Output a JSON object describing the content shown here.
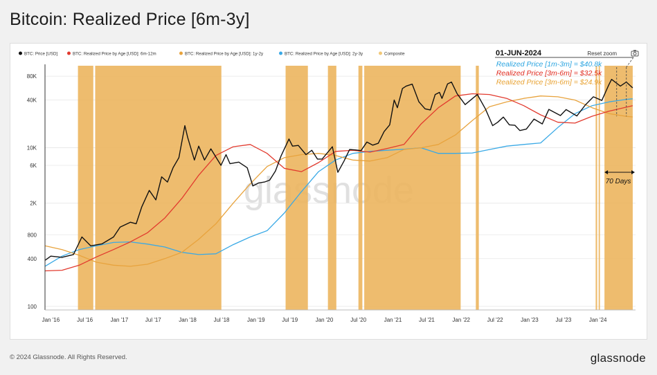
{
  "page": {
    "title": "Bitcoin: Realized Price [6m-3y]",
    "copyright": "© 2024 Glassnode. All Rights Reserved.",
    "brand": "glassnode",
    "watermark": "glassnode"
  },
  "toolbar": {
    "reset_zoom": "Reset zoom",
    "camera_icon": "camera-icon"
  },
  "colors": {
    "price": "#111111",
    "rp_6m_12m": "#e23a2e",
    "rp_1y_2y": "#e8a33d",
    "rp_2y_3y": "#39a9e6",
    "composite": "#f2c979",
    "composite_fill": "#ecb55e",
    "grid": "#e6e6e6",
    "annotation_blue": "#2aa4e0",
    "annotation_red": "#e02a1f",
    "annotation_orange": "#e8a232"
  },
  "annotations": {
    "date": "01-JUN-2024",
    "line1": "Realized Price [1m-3m] = $40.8k",
    "line2": "Realized Price [3m-6m] = $32.5k",
    "line3": "Realized Price [3m-6m] = $24.9k",
    "duration": "70 Days"
  },
  "chart_data": {
    "type": "line",
    "title": "Bitcoin: Realized Price [6m-3y]",
    "y_scale": "log",
    "ylim": [
      90,
      100000
    ],
    "xlim": [
      "2015-12-01",
      "2024-07-20"
    ],
    "x_ticks": [
      {
        "label": "Jan '16",
        "date": "2016-01-01"
      },
      {
        "label": "Jul '16",
        "date": "2016-07-01"
      },
      {
        "label": "Jan '17",
        "date": "2017-01-01"
      },
      {
        "label": "Jul '17",
        "date": "2017-07-01"
      },
      {
        "label": "Jan '18",
        "date": "2018-01-01"
      },
      {
        "label": "Jul '18",
        "date": "2018-07-01"
      },
      {
        "label": "Jan '19",
        "date": "2019-01-01"
      },
      {
        "label": "Jul '19",
        "date": "2019-07-01"
      },
      {
        "label": "Jan '20",
        "date": "2020-01-01"
      },
      {
        "label": "Jul '20",
        "date": "2020-07-01"
      },
      {
        "label": "Jan '21",
        "date": "2021-01-01"
      },
      {
        "label": "Jul '21",
        "date": "2021-07-01"
      },
      {
        "label": "Jan '22",
        "date": "2022-01-01"
      },
      {
        "label": "Jul '22",
        "date": "2022-07-01"
      },
      {
        "label": "Jan '23",
        "date": "2023-01-01"
      },
      {
        "label": "Jul '23",
        "date": "2023-07-01"
      },
      {
        "label": "Jan '24",
        "date": "2024-01-01"
      }
    ],
    "y_ticks": [
      {
        "label": "80K",
        "value": 80000
      },
      {
        "label": "40K",
        "value": 40000
      },
      {
        "label": "10K",
        "value": 10000
      },
      {
        "label": "6K",
        "value": 6000
      },
      {
        "label": "2K",
        "value": 2000
      },
      {
        "label": "800",
        "value": 800
      },
      {
        "label": "400",
        "value": 400
      },
      {
        "label": "100",
        "value": 100
      }
    ],
    "legend": [
      {
        "label": "BTC: Price [USD]",
        "color": "#111111"
      },
      {
        "label": "BTC: Realized Price by Age [USD]: 6m-12m",
        "color": "#e23a2e"
      },
      {
        "label": "BTC: Realized Price by Age [USD]: 1y-2y",
        "color": "#e8a33d"
      },
      {
        "label": "BTC: Realized Price by Age [USD]: 2y-3y",
        "color": "#39a9e6"
      },
      {
        "label": "Composite",
        "color": "#f2c979"
      }
    ],
    "legend_position": "top-left",
    "grid": true,
    "series": [
      {
        "name": "BTC: Price [USD]",
        "color": "#111111",
        "points": [
          [
            "2015-12-01",
            380
          ],
          [
            "2016-01-01",
            430
          ],
          [
            "2016-03-01",
            415
          ],
          [
            "2016-05-01",
            450
          ],
          [
            "2016-06-15",
            750
          ],
          [
            "2016-08-01",
            580
          ],
          [
            "2016-10-01",
            615
          ],
          [
            "2016-12-01",
            750
          ],
          [
            "2017-01-05",
            1000
          ],
          [
            "2017-03-01",
            1150
          ],
          [
            "2017-04-01",
            1100
          ],
          [
            "2017-05-01",
            1800
          ],
          [
            "2017-06-10",
            2900
          ],
          [
            "2017-07-15",
            2200
          ],
          [
            "2017-08-15",
            4300
          ],
          [
            "2017-09-15",
            3700
          ],
          [
            "2017-10-15",
            5600
          ],
          [
            "2017-11-15",
            7500
          ],
          [
            "2017-12-17",
            19000
          ],
          [
            "2018-01-01",
            13500
          ],
          [
            "2018-02-06",
            7000
          ],
          [
            "2018-03-01",
            10500
          ],
          [
            "2018-04-01",
            7000
          ],
          [
            "2018-05-05",
            9700
          ],
          [
            "2018-06-28",
            6000
          ],
          [
            "2018-07-25",
            8200
          ],
          [
            "2018-08-15",
            6300
          ],
          [
            "2018-10-01",
            6600
          ],
          [
            "2018-11-15",
            5600
          ],
          [
            "2018-12-15",
            3300
          ],
          [
            "2019-01-15",
            3600
          ],
          [
            "2019-02-15",
            3700
          ],
          [
            "2019-03-15",
            3900
          ],
          [
            "2019-04-15",
            5100
          ],
          [
            "2019-05-15",
            7900
          ],
          [
            "2019-06-26",
            12900
          ],
          [
            "2019-07-15",
            10500
          ],
          [
            "2019-08-15",
            10700
          ],
          [
            "2019-09-25",
            8200
          ],
          [
            "2019-10-26",
            9300
          ],
          [
            "2019-11-25",
            7200
          ],
          [
            "2019-12-20",
            7200
          ],
          [
            "2020-02-13",
            10300
          ],
          [
            "2020-03-13",
            4900
          ],
          [
            "2020-04-15",
            6800
          ],
          [
            "2020-05-15",
            9500
          ],
          [
            "2020-06-15",
            9400
          ],
          [
            "2020-07-15",
            9200
          ],
          [
            "2020-08-15",
            11800
          ],
          [
            "2020-09-15",
            10800
          ],
          [
            "2020-10-15",
            11400
          ],
          [
            "2020-11-15",
            16000
          ],
          [
            "2020-12-15",
            19500
          ],
          [
            "2021-01-08",
            40000
          ],
          [
            "2021-01-25",
            32000
          ],
          [
            "2021-02-21",
            56000
          ],
          [
            "2021-03-13",
            60000
          ],
          [
            "2021-04-14",
            63500
          ],
          [
            "2021-05-20",
            38000
          ],
          [
            "2021-06-22",
            31000
          ],
          [
            "2021-07-20",
            30000
          ],
          [
            "2021-08-15",
            47000
          ],
          [
            "2021-09-07",
            50000
          ],
          [
            "2021-09-20",
            42000
          ],
          [
            "2021-10-20",
            64000
          ],
          [
            "2021-11-10",
            67500
          ],
          [
            "2021-12-10",
            48000
          ],
          [
            "2022-01-22",
            35000
          ],
          [
            "2022-03-28",
            47000
          ],
          [
            "2022-05-10",
            31000
          ],
          [
            "2022-06-18",
            19000
          ],
          [
            "2022-07-15",
            21000
          ],
          [
            "2022-08-14",
            24400
          ],
          [
            "2022-09-15",
            19500
          ],
          [
            "2022-10-15",
            19200
          ],
          [
            "2022-11-10",
            16500
          ],
          [
            "2022-12-15",
            17200
          ],
          [
            "2023-01-25",
            23000
          ],
          [
            "2023-03-10",
            20000
          ],
          [
            "2023-04-14",
            30500
          ],
          [
            "2023-06-15",
            25500
          ],
          [
            "2023-07-15",
            30300
          ],
          [
            "2023-09-11",
            25200
          ],
          [
            "2023-10-25",
            34500
          ],
          [
            "2023-12-08",
            44000
          ],
          [
            "2024-01-22",
            39500
          ],
          [
            "2024-02-28",
            62000
          ],
          [
            "2024-03-14",
            73000
          ],
          [
            "2024-04-30",
            60000
          ],
          [
            "2024-06-01",
            67500
          ],
          [
            "2024-07-05",
            57000
          ]
        ]
      },
      {
        "name": "BTC: Realized Price by Age [USD]: 6m-12m",
        "color": "#e23a2e",
        "points": [
          [
            "2015-12-01",
            280
          ],
          [
            "2016-03-01",
            285
          ],
          [
            "2016-06-01",
            330
          ],
          [
            "2016-09-01",
            420
          ],
          [
            "2016-12-01",
            520
          ],
          [
            "2017-03-01",
            650
          ],
          [
            "2017-06-01",
            850
          ],
          [
            "2017-09-01",
            1300
          ],
          [
            "2017-12-01",
            2300
          ],
          [
            "2018-03-01",
            4500
          ],
          [
            "2018-06-01",
            8000
          ],
          [
            "2018-09-01",
            10300
          ],
          [
            "2018-12-01",
            11000
          ],
          [
            "2019-03-01",
            8500
          ],
          [
            "2019-06-01",
            5500
          ],
          [
            "2019-09-01",
            5000
          ],
          [
            "2019-12-01",
            6500
          ],
          [
            "2020-03-01",
            9000
          ],
          [
            "2020-06-01",
            9300
          ],
          [
            "2020-09-01",
            8800
          ],
          [
            "2020-12-01",
            9800
          ],
          [
            "2021-03-01",
            11000
          ],
          [
            "2021-06-01",
            20000
          ],
          [
            "2021-09-01",
            32000
          ],
          [
            "2021-12-01",
            45000
          ],
          [
            "2022-03-01",
            48000
          ],
          [
            "2022-06-01",
            47000
          ],
          [
            "2022-09-01",
            42000
          ],
          [
            "2022-12-01",
            34000
          ],
          [
            "2023-03-01",
            26000
          ],
          [
            "2023-06-01",
            21000
          ],
          [
            "2023-09-01",
            20500
          ],
          [
            "2023-12-01",
            25000
          ],
          [
            "2024-03-01",
            29000
          ],
          [
            "2024-06-01",
            32500
          ],
          [
            "2024-07-05",
            34000
          ]
        ]
      },
      {
        "name": "BTC: Realized Price by Age [USD]: 1y-2y",
        "color": "#e8a33d",
        "points": [
          [
            "2015-12-01",
            580
          ],
          [
            "2016-03-01",
            520
          ],
          [
            "2016-06-01",
            440
          ],
          [
            "2016-09-01",
            360
          ],
          [
            "2016-12-01",
            330
          ],
          [
            "2017-03-01",
            320
          ],
          [
            "2017-06-01",
            340
          ],
          [
            "2017-09-01",
            400
          ],
          [
            "2017-12-01",
            480
          ],
          [
            "2018-03-01",
            700
          ],
          [
            "2018-06-01",
            1100
          ],
          [
            "2018-09-01",
            2000
          ],
          [
            "2018-12-01",
            3500
          ],
          [
            "2019-03-01",
            5800
          ],
          [
            "2019-06-01",
            7500
          ],
          [
            "2019-09-01",
            8200
          ],
          [
            "2019-12-01",
            8500
          ],
          [
            "2020-03-01",
            8000
          ],
          [
            "2020-06-01",
            7000
          ],
          [
            "2020-09-01",
            6800
          ],
          [
            "2020-12-01",
            7500
          ],
          [
            "2021-03-01",
            9500
          ],
          [
            "2021-06-01",
            10000
          ],
          [
            "2021-09-01",
            11000
          ],
          [
            "2021-12-01",
            14500
          ],
          [
            "2022-03-01",
            22000
          ],
          [
            "2022-06-01",
            33000
          ],
          [
            "2022-09-01",
            38000
          ],
          [
            "2022-12-01",
            42000
          ],
          [
            "2023-03-01",
            45000
          ],
          [
            "2023-06-01",
            44000
          ],
          [
            "2023-09-01",
            40000
          ],
          [
            "2023-12-01",
            32000
          ],
          [
            "2024-03-01",
            27000
          ],
          [
            "2024-06-01",
            24900
          ],
          [
            "2024-07-05",
            24500
          ]
        ]
      },
      {
        "name": "BTC: Realized Price by Age [USD]: 2y-3y",
        "color": "#39a9e6",
        "points": [
          [
            "2015-12-01",
            320
          ],
          [
            "2016-03-01",
            430
          ],
          [
            "2016-06-01",
            520
          ],
          [
            "2016-09-01",
            580
          ],
          [
            "2016-12-01",
            640
          ],
          [
            "2017-03-01",
            650
          ],
          [
            "2017-06-01",
            610
          ],
          [
            "2017-09-01",
            560
          ],
          [
            "2017-12-01",
            480
          ],
          [
            "2018-03-01",
            450
          ],
          [
            "2018-06-01",
            460
          ],
          [
            "2018-09-01",
            600
          ],
          [
            "2018-12-01",
            750
          ],
          [
            "2019-03-01",
            900
          ],
          [
            "2019-06-01",
            1500
          ],
          [
            "2019-09-01",
            2800
          ],
          [
            "2019-12-01",
            5000
          ],
          [
            "2020-03-01",
            7000
          ],
          [
            "2020-06-01",
            8500
          ],
          [
            "2020-09-01",
            9000
          ],
          [
            "2020-12-01",
            9300
          ],
          [
            "2021-03-01",
            9600
          ],
          [
            "2021-06-01",
            10000
          ],
          [
            "2021-09-01",
            8500
          ],
          [
            "2021-12-01",
            8500
          ],
          [
            "2022-03-01",
            8600
          ],
          [
            "2022-06-01",
            9500
          ],
          [
            "2022-09-01",
            10500
          ],
          [
            "2022-12-01",
            11000
          ],
          [
            "2023-03-01",
            11500
          ],
          [
            "2023-06-01",
            18000
          ],
          [
            "2023-09-01",
            27000
          ],
          [
            "2023-12-01",
            34000
          ],
          [
            "2024-03-01",
            38000
          ],
          [
            "2024-06-01",
            40800
          ],
          [
            "2024-07-05",
            41500
          ]
        ]
      }
    ],
    "composite_periods": [
      [
        "2016-05-25",
        "2016-08-15"
      ],
      [
        "2016-08-25",
        "2018-06-30"
      ],
      [
        "2019-06-08",
        "2019-10-05"
      ],
      [
        "2020-01-20",
        "2020-03-05"
      ],
      [
        "2020-07-01",
        "2020-07-22"
      ],
      [
        "2020-08-01",
        "2021-12-29"
      ],
      [
        "2022-03-20",
        "2022-04-05"
      ],
      [
        "2023-12-20",
        "2023-12-28"
      ],
      [
        "2024-01-05",
        "2024-01-12"
      ],
      [
        "2024-02-05",
        "2024-07-05"
      ]
    ]
  }
}
